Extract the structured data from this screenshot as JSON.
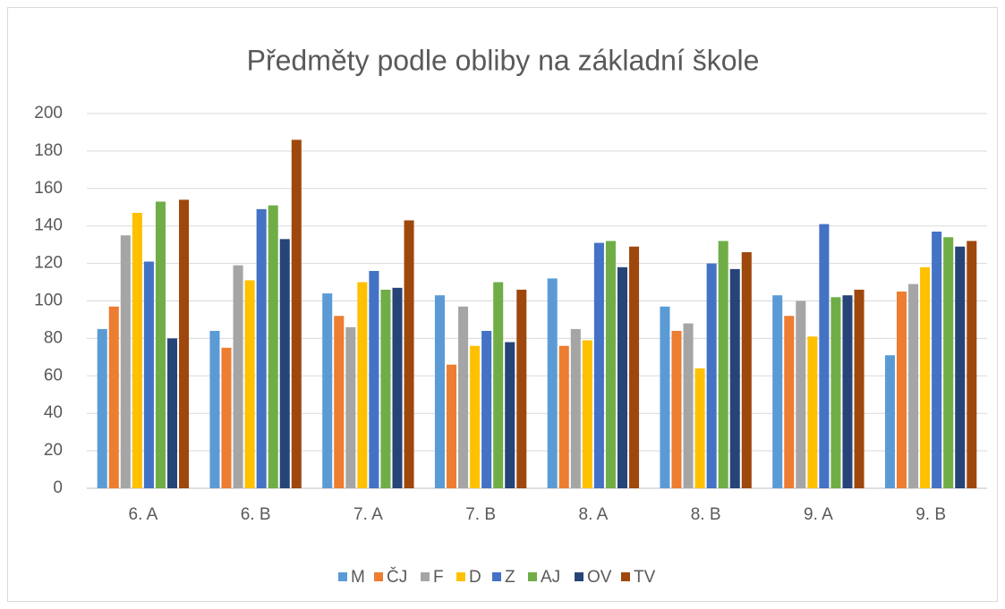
{
  "chart_data": {
    "type": "bar",
    "title": "Předměty podle obliby na základní škole",
    "categories": [
      "6. A",
      "6. B",
      "7. A",
      "7. B",
      "8. A",
      "8. B",
      "9. A",
      "9. B"
    ],
    "series": [
      {
        "name": "M",
        "color": "#5b9bd5",
        "values": [
          85,
          84,
          104,
          103,
          112,
          97,
          103,
          71
        ]
      },
      {
        "name": "ČJ",
        "color": "#ed7d31",
        "values": [
          97,
          75,
          92,
          66,
          76,
          84,
          92,
          105
        ]
      },
      {
        "name": "F",
        "color": "#a5a5a5",
        "values": [
          135,
          119,
          86,
          97,
          85,
          88,
          100,
          109
        ]
      },
      {
        "name": "D",
        "color": "#ffc000",
        "values": [
          147,
          111,
          110,
          76,
          79,
          64,
          81,
          118
        ]
      },
      {
        "name": "Z",
        "color": "#4472c4",
        "values": [
          121,
          149,
          116,
          84,
          131,
          120,
          141,
          137
        ]
      },
      {
        "name": "AJ",
        "color": "#70ad47",
        "values": [
          153,
          151,
          106,
          110,
          132,
          132,
          102,
          134
        ]
      },
      {
        "name": "OV",
        "color": "#264478",
        "values": [
          80,
          133,
          107,
          78,
          118,
          117,
          103,
          129
        ]
      },
      {
        "name": "TV",
        "color": "#9e480e",
        "values": [
          154,
          186,
          143,
          106,
          129,
          126,
          106,
          132
        ]
      }
    ],
    "ylim": [
      0,
      200
    ],
    "yticks": [
      0,
      20,
      40,
      60,
      80,
      100,
      120,
      140,
      160,
      180,
      200
    ],
    "grid": true,
    "legend": "bottom"
  }
}
